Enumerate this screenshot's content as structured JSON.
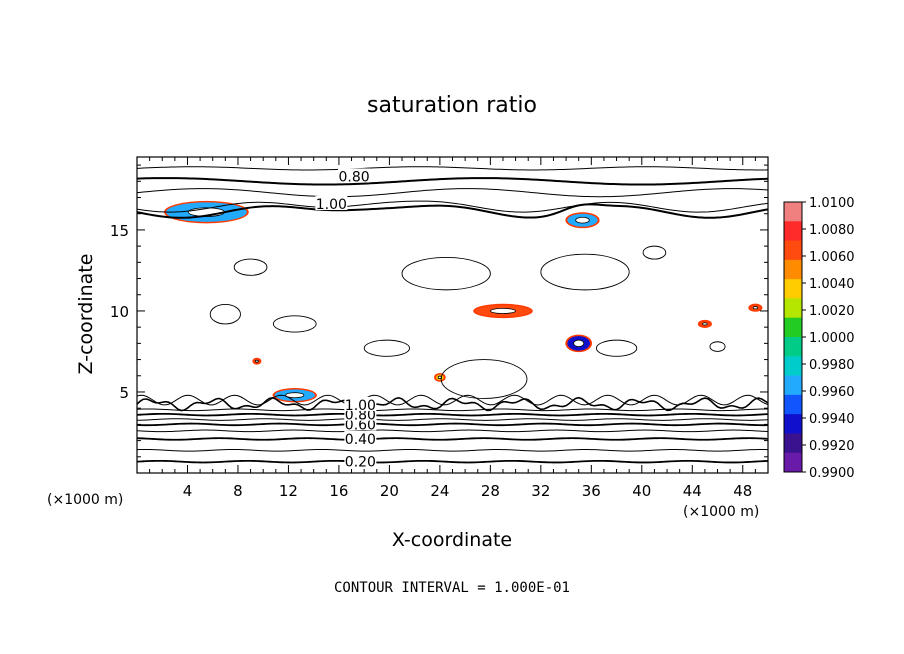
{
  "chart_data": {
    "type": "contour",
    "title": "saturation ratio",
    "xlabel": "X-coordinate",
    "ylabel": "Z-coordinate",
    "x_unit": "(×1000 m)",
    "y_unit": "(×1000 m)",
    "xlim": [
      0,
      50
    ],
    "ylim": [
      0,
      19.5
    ],
    "x_ticks": [
      4,
      8,
      12,
      16,
      20,
      24,
      28,
      32,
      36,
      40,
      44,
      48
    ],
    "y_ticks": [
      5,
      10,
      15
    ],
    "contour_interval_text": "CONTOUR INTERVAL = 1.000E-01",
    "contour_labels": [
      {
        "text": "0.20",
        "x": 17.7,
        "z": 0.7
      },
      {
        "text": "0.40",
        "x": 17.7,
        "z": 2.1
      },
      {
        "text": "0.60",
        "x": 17.7,
        "z": 3.0
      },
      {
        "text": "0.80",
        "x": 17.7,
        "z": 3.6
      },
      {
        "text": "1.00",
        "x": 17.7,
        "z": 4.2
      },
      {
        "text": "0.80",
        "x": 17.2,
        "z": 18.3
      },
      {
        "text": "1.00",
        "x": 15.4,
        "z": 16.6
      }
    ],
    "colorbar": {
      "min": 0.99,
      "max": 1.01,
      "labels": [
        "1.0100",
        "1.0080",
        "1.0060",
        "1.0040",
        "1.0020",
        "1.0000",
        "0.9980",
        "0.9960",
        "0.9940",
        "0.9920",
        "0.9900"
      ],
      "colors": [
        "#f08080",
        "#ff2a2a",
        "#ff4a10",
        "#ff8c00",
        "#ffcc00",
        "#b4e600",
        "#22cc22",
        "#00cc88",
        "#00cccc",
        "#22aaff",
        "#1155ff",
        "#1010cc",
        "#3a1290",
        "#6a1aa8"
      ]
    },
    "shaded_patches": [
      {
        "x": 29.0,
        "z": 10.0,
        "rx": 2.2,
        "rz": 0.35,
        "value": 1.006
      },
      {
        "x": 35.0,
        "z": 8.0,
        "rx": 0.9,
        "rz": 0.45,
        "value": 0.993
      },
      {
        "x": 12.5,
        "z": 4.8,
        "rx": 1.6,
        "rz": 0.35,
        "value": 0.996
      },
      {
        "x": 35.3,
        "z": 15.6,
        "rx": 1.2,
        "rz": 0.4,
        "value": 0.996
      },
      {
        "x": 5.5,
        "z": 16.1,
        "rx": 3.2,
        "rz": 0.6,
        "value": 0.997
      },
      {
        "x": 24.0,
        "z": 5.9,
        "rx": 0.3,
        "rz": 0.18,
        "value": 1.003
      },
      {
        "x": 45.0,
        "z": 9.2,
        "rx": 0.4,
        "rz": 0.16,
        "value": 1.006
      },
      {
        "x": 49.0,
        "z": 10.2,
        "rx": 0.4,
        "rz": 0.16,
        "value": 1.006
      },
      {
        "x": 9.5,
        "z": 6.9,
        "rx": 0.2,
        "rz": 0.12,
        "value": 1.007
      }
    ]
  }
}
